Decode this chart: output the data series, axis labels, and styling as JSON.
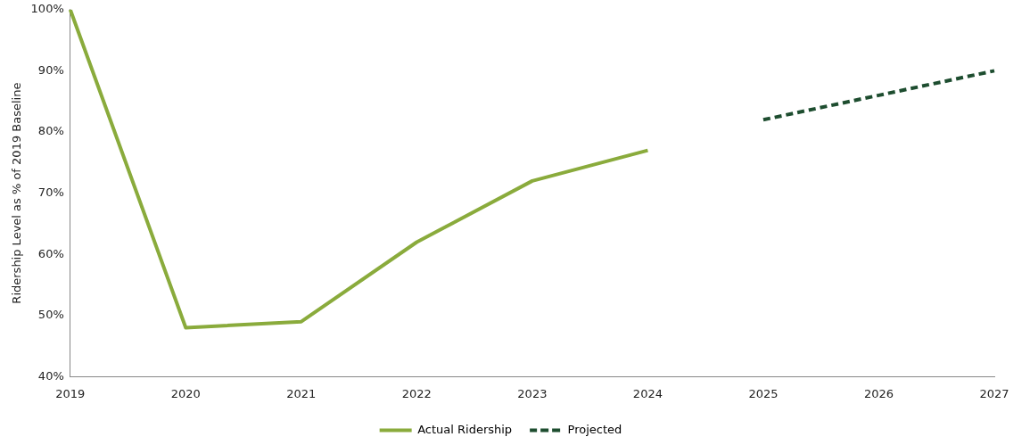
{
  "chart_data": {
    "type": "line",
    "categories": [
      "2019",
      "2020",
      "2021",
      "2022",
      "2023",
      "2024",
      "2025",
      "2026",
      "2027"
    ],
    "series": [
      {
        "name": "Actual Ridership",
        "color": "#8aab3c",
        "line_style": "solid",
        "values": [
          100,
          48,
          49,
          62,
          72,
          77,
          null,
          null,
          null
        ]
      },
      {
        "name": "Projected",
        "color": "#1d4d2f",
        "line_style": "dashed",
        "values": [
          null,
          null,
          null,
          null,
          null,
          null,
          82,
          86,
          90
        ]
      }
    ],
    "ylabel": "Ridership Level as % of 2019 Baseline",
    "ylim": [
      40,
      100
    ],
    "yticks": [
      {
        "value": 40,
        "label": "40%"
      },
      {
        "value": 50,
        "label": "50%"
      },
      {
        "value": 60,
        "label": "60%"
      },
      {
        "value": 70,
        "label": "70%"
      },
      {
        "value": 80,
        "label": "80%"
      },
      {
        "value": 90,
        "label": "90%"
      },
      {
        "value": 100,
        "label": "100%"
      }
    ],
    "grid": false,
    "legend": "bottom",
    "marker": "none"
  }
}
